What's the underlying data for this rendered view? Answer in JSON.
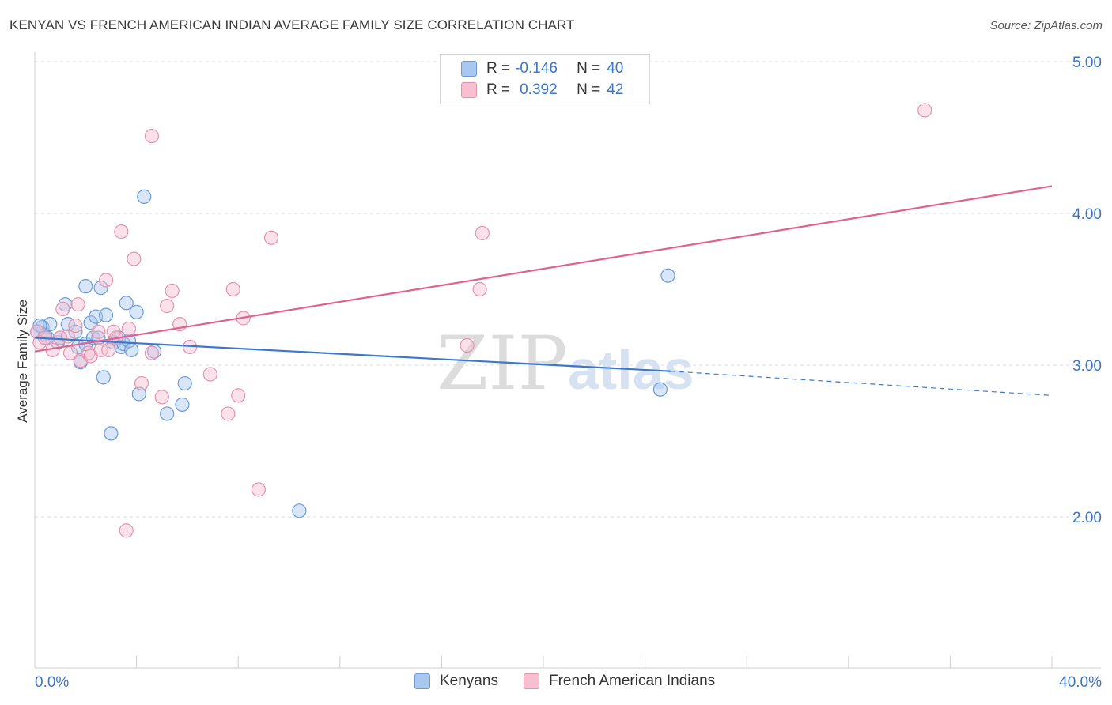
{
  "title": "KENYAN VS FRENCH AMERICAN INDIAN AVERAGE FAMILY SIZE CORRELATION CHART",
  "source": "Source: ZipAtlas.com",
  "watermark": {
    "part1": "ZIP",
    "part2": "atlas"
  },
  "legend": {
    "rows": [
      {
        "r_label": "R = ",
        "r_value": "-0.146",
        "n_label": "N = ",
        "n_value": "40",
        "color": "#a9c8f0",
        "border": "#6a9bd8"
      },
      {
        "r_label": "R = ",
        "r_value": "0.392",
        "n_label": "N = ",
        "n_value": "42",
        "color": "#f7bfd0",
        "border": "#e691ae"
      }
    ]
  },
  "bottom_legend": [
    {
      "label": "Kenyans",
      "color": "#a9c8f0",
      "border": "#6a9bd8"
    },
    {
      "label": "French American Indians",
      "color": "#f7bfd0",
      "border": "#e691ae"
    }
  ],
  "chart_data": {
    "type": "scatter",
    "ylabel": "Average Family Size",
    "xlim": [
      0,
      40
    ],
    "ylim": [
      1.15,
      5.1
    ],
    "y_ticks": [
      2.0,
      3.0,
      4.0,
      5.0
    ],
    "y_tick_labels": [
      "2.00",
      "3.00",
      "4.00",
      "5.00"
    ],
    "x_tick_labels": [
      "0.0%",
      "40.0%"
    ],
    "grid": "horizontal dashed",
    "legend_position": "top-center",
    "series": [
      {
        "name": "Kenyans",
        "color": "#6a9bd8",
        "fill": "#a9c8f0",
        "trend": {
          "x0": 0.0,
          "y0": 3.18,
          "x1": 25.0,
          "y1": 2.96,
          "dashed_to_x": 40.0,
          "dashed_to_y": 2.8,
          "color": "#3a78cf"
        },
        "points": [
          [
            0.1,
            3.22
          ],
          [
            0.3,
            3.25
          ],
          [
            0.4,
            3.2
          ],
          [
            0.6,
            3.27
          ],
          [
            0.5,
            3.18
          ],
          [
            0.9,
            3.15
          ],
          [
            1.2,
            3.4
          ],
          [
            1.3,
            3.27
          ],
          [
            1.6,
            3.22
          ],
          [
            1.7,
            3.12
          ],
          [
            1.8,
            3.02
          ],
          [
            2.0,
            3.14
          ],
          [
            2.0,
            3.52
          ],
          [
            2.2,
            3.28
          ],
          [
            2.3,
            3.18
          ],
          [
            2.4,
            3.32
          ],
          [
            2.5,
            3.18
          ],
          [
            2.6,
            3.51
          ],
          [
            2.7,
            2.92
          ],
          [
            2.8,
            3.33
          ],
          [
            3.0,
            2.55
          ],
          [
            3.1,
            3.15
          ],
          [
            3.3,
            3.18
          ],
          [
            3.4,
            3.12
          ],
          [
            3.5,
            3.14
          ],
          [
            3.6,
            3.41
          ],
          [
            3.7,
            3.16
          ],
          [
            4.0,
            3.35
          ],
          [
            4.1,
            2.81
          ],
          [
            4.3,
            4.11
          ],
          [
            4.7,
            3.09
          ],
          [
            5.2,
            2.68
          ],
          [
            5.8,
            2.74
          ],
          [
            5.9,
            2.88
          ],
          [
            10.4,
            2.04
          ],
          [
            24.6,
            2.84
          ],
          [
            24.9,
            3.59
          ],
          [
            1.0,
            3.18
          ],
          [
            0.2,
            3.26
          ],
          [
            3.8,
            3.1
          ]
        ]
      },
      {
        "name": "French American Indians",
        "color": "#e691ae",
        "fill": "#f7bfd0",
        "trend": {
          "x0": 0.0,
          "y0": 3.09,
          "x1": 40.0,
          "y1": 4.18,
          "color": "#e0628d"
        },
        "points": [
          [
            0.1,
            3.22
          ],
          [
            0.2,
            3.15
          ],
          [
            0.4,
            3.18
          ],
          [
            0.7,
            3.1
          ],
          [
            1.0,
            3.18
          ],
          [
            1.1,
            3.37
          ],
          [
            1.3,
            3.19
          ],
          [
            1.4,
            3.08
          ],
          [
            1.6,
            3.26
          ],
          [
            1.7,
            3.4
          ],
          [
            1.8,
            3.03
          ],
          [
            2.1,
            3.08
          ],
          [
            2.2,
            3.06
          ],
          [
            2.5,
            3.22
          ],
          [
            2.6,
            3.1
          ],
          [
            2.8,
            3.56
          ],
          [
            2.9,
            3.1
          ],
          [
            3.1,
            3.22
          ],
          [
            3.2,
            3.18
          ],
          [
            3.4,
            3.88
          ],
          [
            3.6,
            1.91
          ],
          [
            3.7,
            3.24
          ],
          [
            3.9,
            3.7
          ],
          [
            4.2,
            2.88
          ],
          [
            4.6,
            3.08
          ],
          [
            4.6,
            4.51
          ],
          [
            5.0,
            2.79
          ],
          [
            5.2,
            3.39
          ],
          [
            5.4,
            3.49
          ],
          [
            5.7,
            3.27
          ],
          [
            6.1,
            3.12
          ],
          [
            6.9,
            2.94
          ],
          [
            7.6,
            2.68
          ],
          [
            7.8,
            3.5
          ],
          [
            8.0,
            2.8
          ],
          [
            8.2,
            3.31
          ],
          [
            8.8,
            2.18
          ],
          [
            9.3,
            3.84
          ],
          [
            17.0,
            3.13
          ],
          [
            17.5,
            3.5
          ],
          [
            17.6,
            3.87
          ],
          [
            35.0,
            4.68
          ]
        ]
      }
    ]
  }
}
